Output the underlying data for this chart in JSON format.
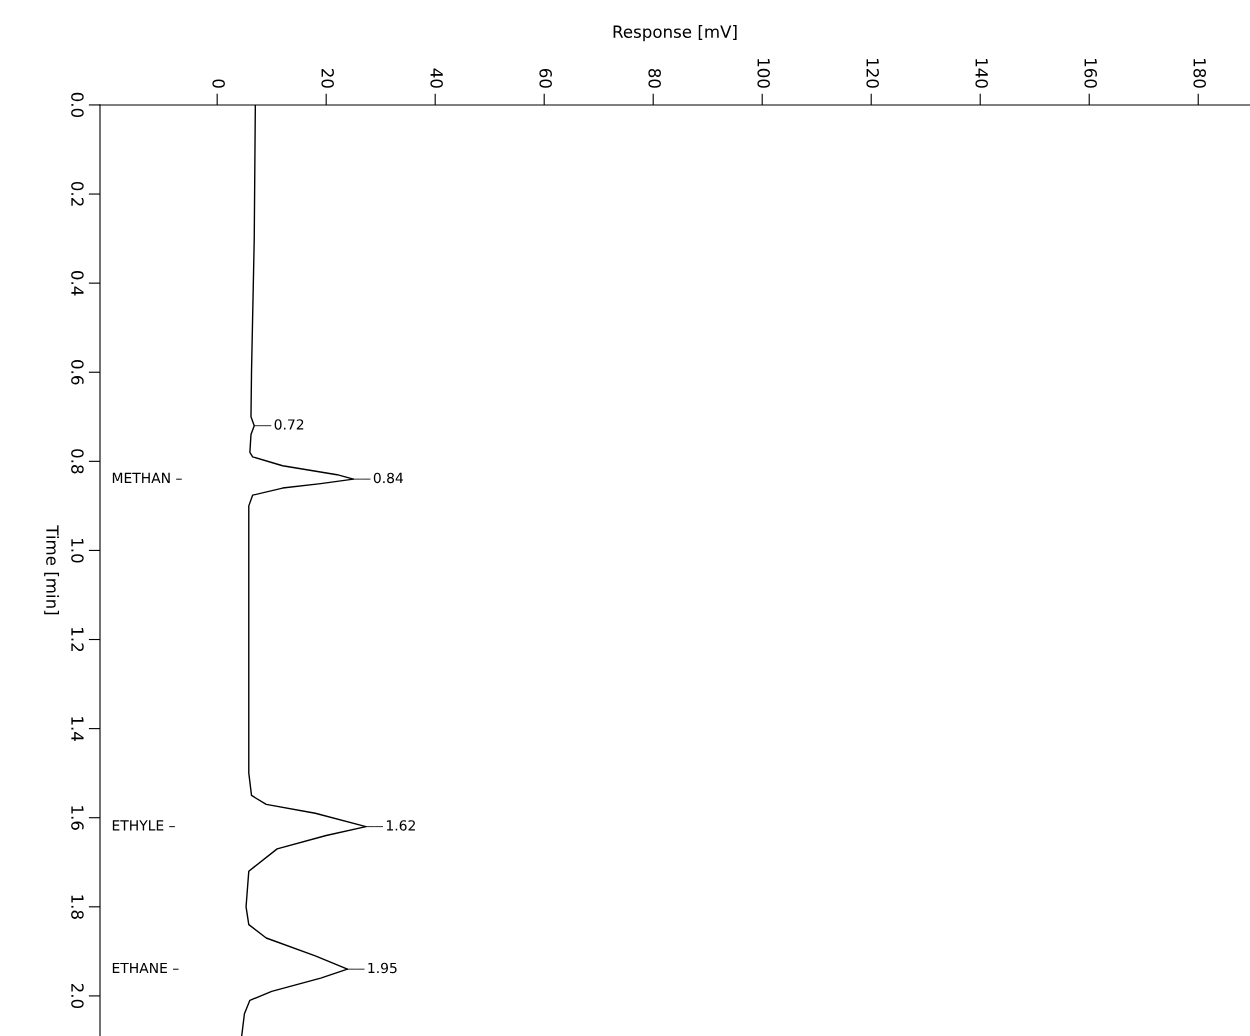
{
  "chart_data": {
    "type": "line",
    "orientation": "horizontal",
    "xlabel": "Response [mV]",
    "ylabel": "Time [min]",
    "xlim": [
      -21.5,
      189.5
    ],
    "xticks": [
      0,
      20,
      40,
      60,
      80,
      100,
      120,
      140,
      160,
      180
    ],
    "ylim": [
      2.09,
      0.0
    ],
    "yticks": [
      {
        "value": 0,
        "label": "0.0"
      },
      0.2,
      0.4,
      0.6,
      0.8,
      {
        "value": 1,
        "label": "1.0"
      },
      1.2,
      1.4,
      1.6,
      1.8,
      {
        "value": 2,
        "label": "2.0"
      }
    ],
    "grid": false,
    "legend": false,
    "marker": "none",
    "line_style": "solid",
    "series": [
      {
        "color": "#000000",
        "x": [
          0.0,
          0.3,
          0.6,
          0.7,
          0.72,
          0.74,
          0.78,
          0.79,
          0.81,
          0.83,
          0.84,
          0.85,
          0.86,
          0.876,
          0.9,
          1.2,
          1.5,
          1.55,
          1.57,
          1.59,
          1.62,
          1.64,
          1.67,
          1.72,
          1.8,
          1.84,
          1.87,
          1.91,
          1.94,
          1.96,
          1.99,
          2.01,
          2.04,
          2.09
        ],
        "values": [
          7,
          6.8,
          6.3,
          6.2,
          6.8,
          6.2,
          6,
          6.5,
          12,
          22,
          25,
          19,
          12,
          6.5,
          5.8,
          5.8,
          5.8,
          6.3,
          9,
          18,
          27.3,
          20,
          11,
          5.8,
          5.3,
          5.8,
          9,
          18,
          23.9,
          19,
          10,
          6,
          5,
          4.5
        ]
      }
    ],
    "annotations": [
      {
        "text": "0.72",
        "x": 6.8,
        "y": 0.72
      },
      {
        "text": "0.84",
        "x": 25,
        "y": 0.84
      },
      {
        "text": "1.62",
        "x": 27.3,
        "y": 1.62
      },
      {
        "text": "1.95",
        "x": 23.9,
        "y": 1.94
      },
      "METHAN –",
      "ETHYLE –",
      "ETHANE –"
    ]
  }
}
